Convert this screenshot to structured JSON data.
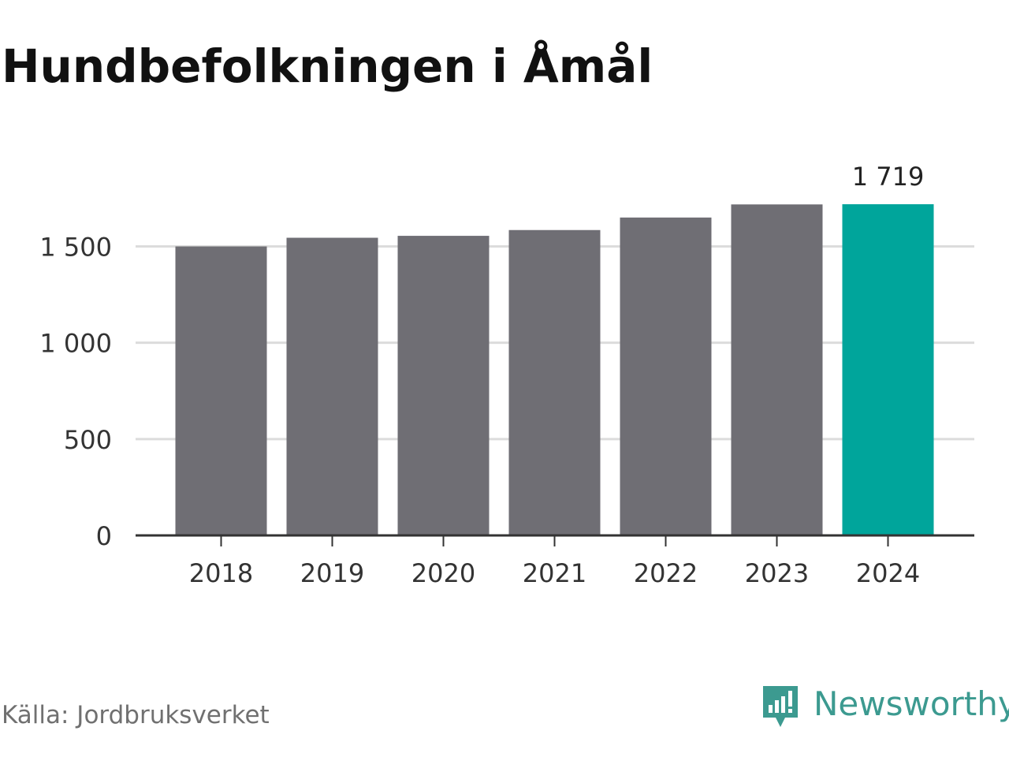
{
  "title": "Hundbefolkningen i Åmål",
  "source": "Källa: Jordbruksverket",
  "brand": {
    "name": "Newsworthy",
    "logo_icon": "newsworthy-logo-icon"
  },
  "colors": {
    "bar": "#6f6e74",
    "highlight": "#00a59b",
    "grid": "#dcdcdc",
    "axis": "#333333",
    "text": "#333333",
    "brand": "#3c9a90"
  },
  "chart_data": {
    "type": "bar",
    "title": "Hundbefolkningen i Åmål",
    "xlabel": "",
    "ylabel": "",
    "categories": [
      "2018",
      "2019",
      "2020",
      "2021",
      "2022",
      "2023",
      "2024"
    ],
    "values": [
      1500,
      1545,
      1555,
      1585,
      1650,
      1718,
      1719
    ],
    "highlight_index": 6,
    "data_labels": [
      {
        "index": 6,
        "text": "1 719"
      }
    ],
    "ylim": [
      0,
      1719
    ],
    "yticks": [
      {
        "value": 0,
        "label": "0"
      },
      {
        "value": 500,
        "label": "500"
      },
      {
        "value": 1000,
        "label": "1 000"
      },
      {
        "value": 1500,
        "label": "1 500"
      }
    ],
    "grid": true,
    "legend": "none"
  }
}
